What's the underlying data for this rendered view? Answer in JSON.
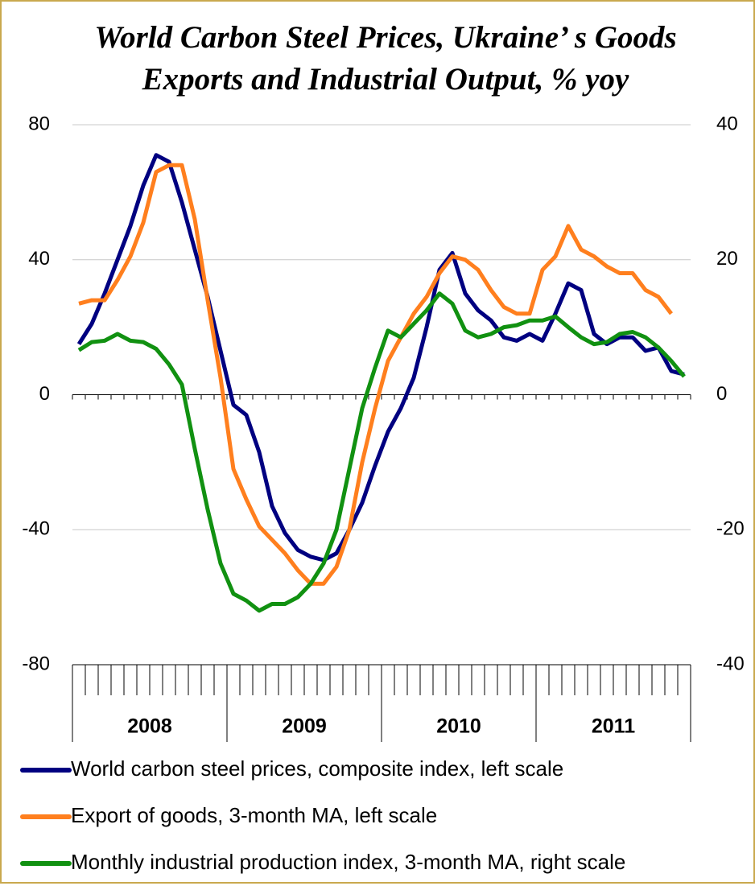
{
  "chart_data": {
    "type": "line",
    "title": [
      "World Carbon Steel Prices, Ukraine’ s Goods",
      "Exports and Industrial Output, % yoy"
    ],
    "categories": [
      "2008",
      null,
      null,
      null,
      null,
      null,
      null,
      null,
      null,
      null,
      null,
      null,
      "2009",
      null,
      null,
      null,
      null,
      null,
      null,
      null,
      null,
      null,
      null,
      null,
      "2010",
      null,
      null,
      null,
      null,
      null,
      null,
      null,
      null,
      null,
      null,
      null,
      "2011",
      null,
      null,
      null,
      null,
      null,
      null,
      null,
      null,
      null,
      null,
      null
    ],
    "series": [
      {
        "name": "World carbon steel prices, composite index, left scale",
        "color": "#000080",
        "axis": "y",
        "values": [
          15,
          21,
          30,
          40,
          50,
          62,
          71,
          69,
          57,
          43,
          29,
          13,
          -3,
          -6,
          -17,
          -33,
          -41,
          -46,
          -48,
          -49,
          -47,
          -40,
          -32,
          -21,
          -11,
          -4,
          5,
          20,
          37,
          42,
          30,
          25,
          22,
          17,
          16,
          18,
          16,
          24,
          33,
          31,
          18,
          15,
          17,
          17,
          13,
          14,
          7,
          6
        ]
      },
      {
        "name": "Export of goods, 3-month MA, left scale",
        "color": "#ff7f1e",
        "axis": "y",
        "values": [
          27,
          28,
          28,
          34,
          41,
          51,
          66,
          68,
          68,
          52,
          28,
          5,
          -22,
          -31,
          -39,
          -43,
          -47,
          -52,
          -56,
          -56,
          -51,
          -40,
          -20,
          -4,
          10,
          17,
          24,
          29,
          36,
          41,
          40,
          37,
          31,
          26,
          24,
          24,
          37,
          41,
          50,
          43,
          41,
          38,
          36,
          36,
          31,
          29,
          24,
          null
        ]
      },
      {
        "name": "Monthly industrial production index, 3-month MA, right scale",
        "color": "#119111",
        "axis": "y2",
        "values": [
          6.6,
          7.8,
          8,
          9,
          8,
          7.8,
          6.8,
          4.5,
          1.5,
          -8,
          -17,
          -25,
          -29.5,
          -30.5,
          -32,
          -31,
          -31,
          -30,
          -28,
          -25,
          -20,
          -11,
          -2,
          4,
          9.5,
          8.5,
          10.5,
          12.5,
          15,
          13.5,
          9.5,
          8.5,
          9,
          10,
          10.3,
          11,
          11,
          11.6,
          10,
          8.5,
          7.5,
          7.8,
          9,
          9.3,
          8.5,
          7,
          5,
          2.7
        ]
      }
    ],
    "ylim": [
      -80,
      80
    ],
    "yticks": [
      -80,
      -40,
      0,
      40,
      80
    ],
    "y2lim": [
      -40,
      40
    ],
    "y2ticks": [
      -40,
      -20,
      0,
      20,
      40
    ],
    "grid": true
  }
}
